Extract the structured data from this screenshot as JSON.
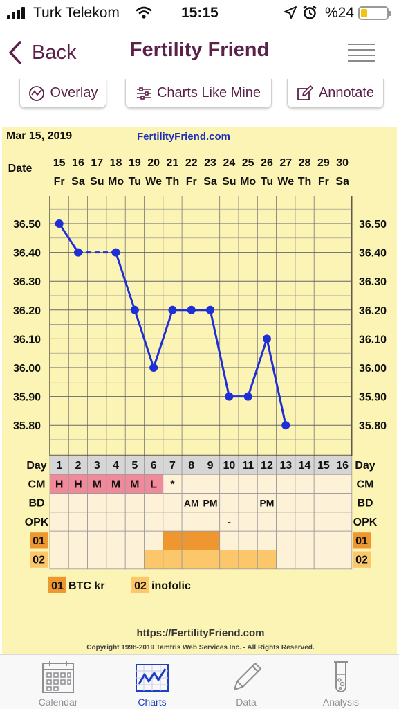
{
  "status": {
    "carrier": "Turk Telekom",
    "time": "15:15",
    "battery": "%24",
    "battery_level": 0.24
  },
  "nav": {
    "back_label": "Back",
    "title": "Fertility Friend",
    "menu_icon": "hamburger-menu-icon"
  },
  "toolbar": {
    "overlay": "Overlay",
    "charts_like_mine": "Charts Like Mine",
    "annotate": "Annotate"
  },
  "chart": {
    "start_date": "Mar 15, 2019",
    "site": "FertilityFriend.com",
    "date_label": "Date",
    "dates": [
      "15",
      "16",
      "17",
      "18",
      "19",
      "20",
      "21",
      "22",
      "23",
      "24",
      "25",
      "26",
      "27",
      "28",
      "29",
      "30"
    ],
    "weekdays": [
      "Fr",
      "Sa",
      "Su",
      "Mo",
      "Tu",
      "We",
      "Th",
      "Fr",
      "Sa",
      "Su",
      "Mo",
      "Tu",
      "We",
      "Th",
      "Fr",
      "Sa"
    ],
    "y_ticks": [
      "36.50",
      "36.40",
      "36.30",
      "36.20",
      "36.10",
      "36.00",
      "35.90",
      "35.80"
    ],
    "day_label": "Day",
    "days": [
      "1",
      "2",
      "3",
      "4",
      "5",
      "6",
      "7",
      "8",
      "9",
      "10",
      "11",
      "12",
      "13",
      "14",
      "15",
      "16"
    ],
    "rows": {
      "cm_label": "CM",
      "cm": [
        "H",
        "H",
        "M",
        "M",
        "M",
        "L",
        "*",
        "",
        "",
        "",
        "",
        "",
        "",
        "",
        "",
        ""
      ],
      "bd_label": "BD",
      "bd": [
        "",
        "",
        "",
        "",
        "",
        "",
        "",
        "AM",
        "PM",
        "",
        "",
        "PM",
        "",
        "",
        "",
        ""
      ],
      "opk_label": "OPK",
      "opk": [
        "",
        "",
        "",
        "",
        "",
        "",
        "",
        "",
        "",
        "-",
        "",
        "",
        "",
        "",
        "",
        ""
      ],
      "r01_label": "01",
      "r02_label": "02"
    },
    "legend": {
      "k01": "01",
      "v01": "BTC kr",
      "k02": "02",
      "v02": "inofolic"
    },
    "footer_url": "https://FertilityFriend.com",
    "copyright": "Copyright 1998-2019 Tamtris Web Services Inc. - All Rights Reserved.",
    "colors": {
      "paper": "#fcf4b4",
      "cm_pink": "#f08a9a",
      "med01": "#ee9730",
      "med02": "#fbc76a",
      "line": "#1f2fd6"
    }
  },
  "chart_data": {
    "type": "line",
    "x": [
      1,
      2,
      3,
      4,
      5,
      6,
      7,
      8,
      9,
      10,
      11,
      12,
      13
    ],
    "y": [
      36.5,
      36.4,
      null,
      36.4,
      36.2,
      36.0,
      36.2,
      36.2,
      36.2,
      35.9,
      35.9,
      36.1,
      35.8
    ],
    "ylim": [
      35.75,
      36.6
    ],
    "xlabel": "Day",
    "grid": true
  },
  "tabs": [
    {
      "label": "Calendar",
      "icon": "calendar-icon",
      "active": false
    },
    {
      "label": "Charts",
      "icon": "chart-icon",
      "active": true
    },
    {
      "label": "Data",
      "icon": "pencil-icon",
      "active": false
    },
    {
      "label": "Analysis",
      "icon": "test-tube-icon",
      "active": false
    }
  ]
}
